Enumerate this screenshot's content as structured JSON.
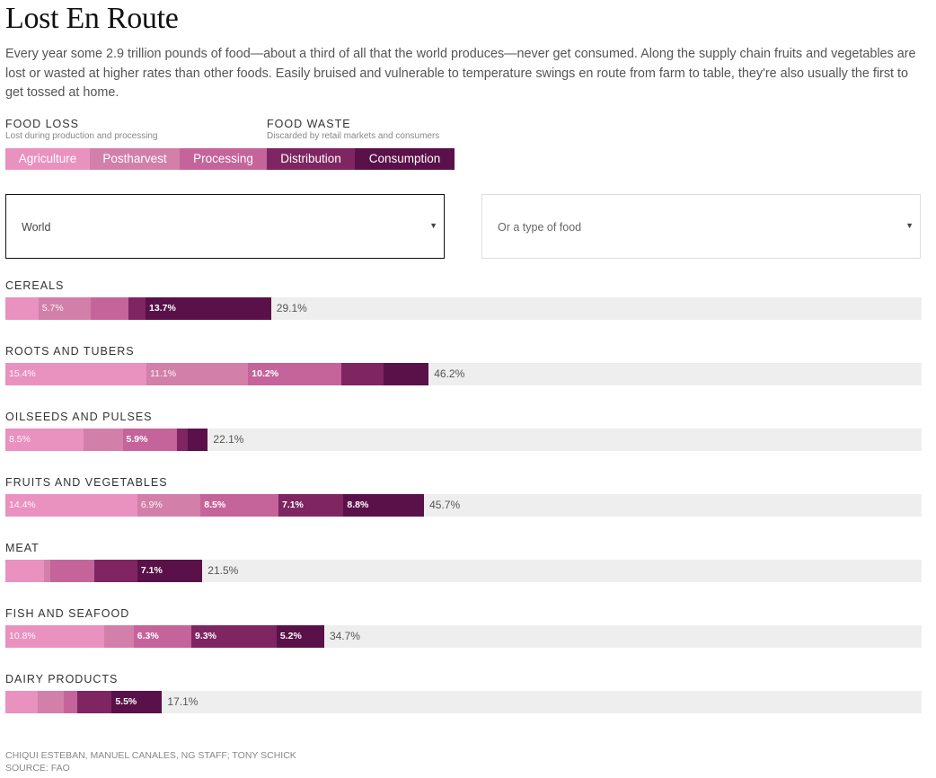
{
  "header": {
    "title": "Lost En Route",
    "intro": "Every year some 2.9 trillion pounds of food—about a third of all that the world produces—never get consumed. Along the supply chain fruits and vegetables are lost or wasted at higher rates than other foods. Easily bruised and vulnerable to temperature swings en route from farm to table, they're also usually the first to get tossed at home."
  },
  "legend": {
    "loss": {
      "title": "FOOD LOSS",
      "subtitle": "Lost during production and processing"
    },
    "waste": {
      "title": "FOOD WASTE",
      "subtitle": "Discarded by retail markets and consumers"
    },
    "stages": [
      {
        "label": "Agriculture",
        "color": "#e991bf"
      },
      {
        "label": "Postharvest",
        "color": "#d27fa9"
      },
      {
        "label": "Processing",
        "color": "#c5649a"
      },
      {
        "label": "Distribution",
        "color": "#7e2562"
      },
      {
        "label": "Consumption",
        "color": "#5a1149"
      }
    ]
  },
  "filters": {
    "region": {
      "value": "World"
    },
    "food": {
      "placeholder": "Or a type of food"
    }
  },
  "chart_data": {
    "type": "bar",
    "orientation": "horizontal",
    "stacked": true,
    "unit": "%",
    "xlim": [
      0,
      100
    ],
    "series_names": [
      "Agriculture",
      "Postharvest",
      "Processing",
      "Distribution",
      "Consumption"
    ],
    "categories": [
      {
        "name": "CEREALS",
        "values": [
          3.6,
          5.7,
          4.1,
          1.9,
          13.7
        ],
        "labels": [
          "",
          "5.7%",
          "",
          "",
          "13.7%"
        ],
        "total": "29.1%"
      },
      {
        "name": "ROOTS AND TUBERS",
        "values": [
          15.4,
          11.1,
          10.2,
          4.6,
          4.9
        ],
        "labels": [
          "15.4%",
          "11.1%",
          "10.2%",
          "",
          ""
        ],
        "total": "46.2%"
      },
      {
        "name": "OILSEEDS AND PULSES",
        "values": [
          8.5,
          4.3,
          5.9,
          1.2,
          2.2
        ],
        "labels": [
          "8.5%",
          "",
          "5.9%",
          "",
          ""
        ],
        "total": "22.1%"
      },
      {
        "name": "FRUITS AND VEGETABLES",
        "values": [
          14.4,
          6.9,
          8.5,
          7.1,
          8.8
        ],
        "labels": [
          "14.4%",
          "6.9%",
          "8.5%",
          "7.1%",
          "8.8%"
        ],
        "total": "45.7%"
      },
      {
        "name": "MEAT",
        "values": [
          4.2,
          0.7,
          4.8,
          4.7,
          7.1
        ],
        "labels": [
          "",
          "",
          "",
          "",
          "7.1%"
        ],
        "total": "21.5%"
      },
      {
        "name": "FISH AND SEAFOOD",
        "values": [
          10.8,
          3.2,
          6.3,
          9.3,
          5.2
        ],
        "labels": [
          "10.8%",
          "",
          "6.3%",
          "9.3%",
          "5.2%"
        ],
        "total": "34.7%"
      },
      {
        "name": "DAIRY PRODUCTS",
        "values": [
          3.5,
          2.9,
          1.4,
          3.8,
          5.5
        ],
        "labels": [
          "",
          "",
          "",
          "",
          "5.5%"
        ],
        "total": "17.1%"
      }
    ]
  },
  "credits": {
    "line1": "CHIQUI ESTEBAN, MANUEL CANALES, NG STAFF; TONY SCHICK",
    "line2": "SOURCE: FAO"
  }
}
